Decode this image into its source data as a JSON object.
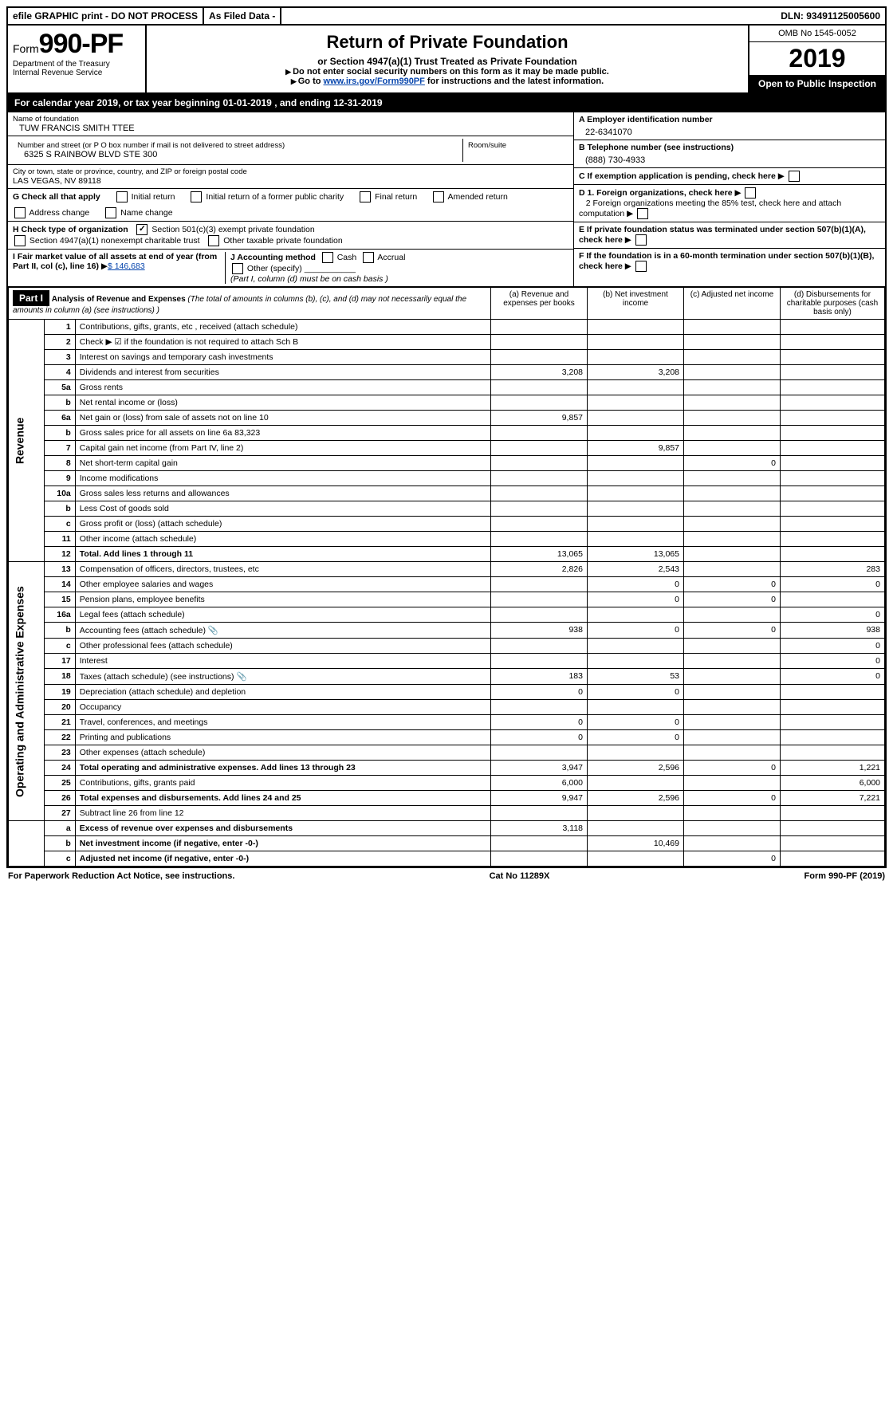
{
  "topbar": {
    "efile": "efile GRAPHIC print - DO NOT PROCESS",
    "asfiled": "As Filed Data -",
    "dln_label": "DLN:",
    "dln": "93491125005600"
  },
  "header": {
    "form_prefix": "Form",
    "form_number": "990-PF",
    "dept": "Department of the Treasury",
    "irs": "Internal Revenue Service",
    "title": "Return of Private Foundation",
    "subtitle": "or Section 4947(a)(1) Trust Treated as Private Foundation",
    "note1": "Do not enter social security numbers on this form as it may be made public.",
    "note2_pre": "Go to ",
    "note2_link": "www.irs.gov/Form990PF",
    "note2_post": " for instructions and the latest information.",
    "omb": "OMB No 1545-0052",
    "year": "2019",
    "inspect": "Open to Public Inspection"
  },
  "calendar": {
    "text_pre": "For calendar year 2019, or tax year beginning ",
    "begin": "01-01-2019",
    "mid": " , and ending ",
    "end": "12-31-2019"
  },
  "entity": {
    "name_label": "Name of foundation",
    "name": "TUW FRANCIS SMITH TTEE",
    "addr_label": "Number and street (or P O  box number if mail is not delivered to street address)",
    "addr": "6325 S RAINBOW BLVD STE 300",
    "room_label": "Room/suite",
    "room": "",
    "city_label": "City or town, state or province, country, and ZIP or foreign postal code",
    "city": "LAS VEGAS, NV  89118",
    "a_label": "A Employer identification number",
    "a_val": "22-6341070",
    "b_label": "B Telephone number (see instructions)",
    "b_val": "(888) 730-4933",
    "c_label": "C If exemption application is pending, check here"
  },
  "g": {
    "label": "G Check all that apply",
    "opts": [
      "Initial return",
      "Initial return of a former public charity",
      "Final return",
      "Amended return",
      "Address change",
      "Name change"
    ]
  },
  "h": {
    "label": "H Check type of organization",
    "opt1": "Section 501(c)(3) exempt private foundation",
    "opt2": "Section 4947(a)(1) nonexempt charitable trust",
    "opt3": "Other taxable private foundation"
  },
  "d": {
    "d1": "D 1. Foreign organizations, check here",
    "d2": "2  Foreign organizations meeting the 85% test, check here and attach computation",
    "e": "E  If private foundation status was terminated under section 507(b)(1)(A), check here",
    "f": "F  If the foundation is in a 60-month termination under section 507(b)(1)(B), check here"
  },
  "i": {
    "label": "I Fair market value of all assets at end of year (from Part II, col  (c), line 16)",
    "val": "$  146,683"
  },
  "j": {
    "label": "J Accounting method",
    "cash": "Cash",
    "accrual": "Accrual",
    "other": "Other (specify)",
    "note": "(Part I, column (d) must be on cash basis )"
  },
  "part1": {
    "hdr": "Part I",
    "title": "Analysis of Revenue and Expenses",
    "title_note": " (The total of amounts in columns (b), (c), and (d) may not necessarily equal the amounts in column (a) (see instructions) )",
    "cols": {
      "a": "(a) Revenue and expenses per books",
      "b": "(b) Net investment income",
      "c": "(c) Adjusted net income",
      "d": "(d) Disbursements for charitable purposes (cash basis only)"
    }
  },
  "side": {
    "revenue": "Revenue",
    "expenses": "Operating and Administrative Expenses"
  },
  "rows": [
    {
      "ln": "1",
      "desc": "Contributions, gifts, grants, etc , received (attach schedule)",
      "a": "",
      "b": "",
      "c": "",
      "d": ""
    },
    {
      "ln": "2",
      "desc": "Check ▶ ☑ if the foundation is not required to attach Sch B",
      "a": "",
      "b": "",
      "c": "",
      "d": ""
    },
    {
      "ln": "3",
      "desc": "Interest on savings and temporary cash investments",
      "a": "",
      "b": "",
      "c": "",
      "d": ""
    },
    {
      "ln": "4",
      "desc": "Dividends and interest from securities",
      "a": "3,208",
      "b": "3,208",
      "c": "",
      "d": ""
    },
    {
      "ln": "5a",
      "desc": "Gross rents",
      "a": "",
      "b": "",
      "c": "",
      "d": ""
    },
    {
      "ln": "b",
      "desc": "Net rental income or (loss)",
      "a": "",
      "b": "",
      "c": "",
      "d": ""
    },
    {
      "ln": "6a",
      "desc": "Net gain or (loss) from sale of assets not on line 10",
      "a": "9,857",
      "b": "",
      "c": "",
      "d": ""
    },
    {
      "ln": "b",
      "desc": "Gross sales price for all assets on line 6a          83,323",
      "a": "",
      "b": "",
      "c": "",
      "d": ""
    },
    {
      "ln": "7",
      "desc": "Capital gain net income (from Part IV, line 2)",
      "a": "",
      "b": "9,857",
      "c": "",
      "d": ""
    },
    {
      "ln": "8",
      "desc": "Net short-term capital gain",
      "a": "",
      "b": "",
      "c": "0",
      "d": ""
    },
    {
      "ln": "9",
      "desc": "Income modifications",
      "a": "",
      "b": "",
      "c": "",
      "d": ""
    },
    {
      "ln": "10a",
      "desc": "Gross sales less returns and allowances",
      "a": "",
      "b": "",
      "c": "",
      "d": ""
    },
    {
      "ln": "b",
      "desc": "Less  Cost of goods sold",
      "a": "",
      "b": "",
      "c": "",
      "d": ""
    },
    {
      "ln": "c",
      "desc": "Gross profit or (loss) (attach schedule)",
      "a": "",
      "b": "",
      "c": "",
      "d": ""
    },
    {
      "ln": "11",
      "desc": "Other income (attach schedule)",
      "a": "",
      "b": "",
      "c": "",
      "d": ""
    },
    {
      "ln": "12",
      "desc": "Total. Add lines 1 through 11",
      "bold": true,
      "a": "13,065",
      "b": "13,065",
      "c": "",
      "d": ""
    },
    {
      "ln": "13",
      "desc": "Compensation of officers, directors, trustees, etc",
      "a": "2,826",
      "b": "2,543",
      "c": "",
      "d": "283"
    },
    {
      "ln": "14",
      "desc": "Other employee salaries and wages",
      "a": "",
      "b": "0",
      "c": "0",
      "d": "0"
    },
    {
      "ln": "15",
      "desc": "Pension plans, employee benefits",
      "a": "",
      "b": "0",
      "c": "0",
      "d": ""
    },
    {
      "ln": "16a",
      "desc": "Legal fees (attach schedule)",
      "a": "",
      "b": "",
      "c": "",
      "d": "0"
    },
    {
      "ln": "b",
      "desc": "Accounting fees (attach schedule)",
      "icon": true,
      "a": "938",
      "b": "0",
      "c": "0",
      "d": "938"
    },
    {
      "ln": "c",
      "desc": "Other professional fees (attach schedule)",
      "a": "",
      "b": "",
      "c": "",
      "d": "0"
    },
    {
      "ln": "17",
      "desc": "Interest",
      "a": "",
      "b": "",
      "c": "",
      "d": "0"
    },
    {
      "ln": "18",
      "desc": "Taxes (attach schedule) (see instructions)",
      "icon": true,
      "a": "183",
      "b": "53",
      "c": "",
      "d": "0"
    },
    {
      "ln": "19",
      "desc": "Depreciation (attach schedule) and depletion",
      "a": "0",
      "b": "0",
      "c": "",
      "d": ""
    },
    {
      "ln": "20",
      "desc": "Occupancy",
      "a": "",
      "b": "",
      "c": "",
      "d": ""
    },
    {
      "ln": "21",
      "desc": "Travel, conferences, and meetings",
      "a": "0",
      "b": "0",
      "c": "",
      "d": ""
    },
    {
      "ln": "22",
      "desc": "Printing and publications",
      "a": "0",
      "b": "0",
      "c": "",
      "d": ""
    },
    {
      "ln": "23",
      "desc": "Other expenses (attach schedule)",
      "a": "",
      "b": "",
      "c": "",
      "d": ""
    },
    {
      "ln": "24",
      "desc": "Total operating and administrative expenses. Add lines 13 through 23",
      "bold": true,
      "a": "3,947",
      "b": "2,596",
      "c": "0",
      "d": "1,221"
    },
    {
      "ln": "25",
      "desc": "Contributions, gifts, grants paid",
      "a": "6,000",
      "b": "",
      "c": "",
      "d": "6,000"
    },
    {
      "ln": "26",
      "desc": "Total expenses and disbursements. Add lines 24 and 25",
      "bold": true,
      "a": "9,947",
      "b": "2,596",
      "c": "0",
      "d": "7,221"
    },
    {
      "ln": "27",
      "desc": "Subtract line 26 from line 12",
      "a": "",
      "b": "",
      "c": "",
      "d": ""
    },
    {
      "ln": "a",
      "desc": "Excess of revenue over expenses and disbursements",
      "bold": true,
      "a": "3,118",
      "b": "",
      "c": "",
      "d": ""
    },
    {
      "ln": "b",
      "desc": "Net investment income (if negative, enter -0-)",
      "bold": true,
      "a": "",
      "b": "10,469",
      "c": "",
      "d": ""
    },
    {
      "ln": "c",
      "desc": "Adjusted net income (if negative, enter -0-)",
      "bold": true,
      "a": "",
      "b": "",
      "c": "0",
      "d": ""
    }
  ],
  "footer": {
    "left": "For Paperwork Reduction Act Notice, see instructions.",
    "mid": "Cat  No  11289X",
    "right": "Form 990-PF (2019)"
  }
}
